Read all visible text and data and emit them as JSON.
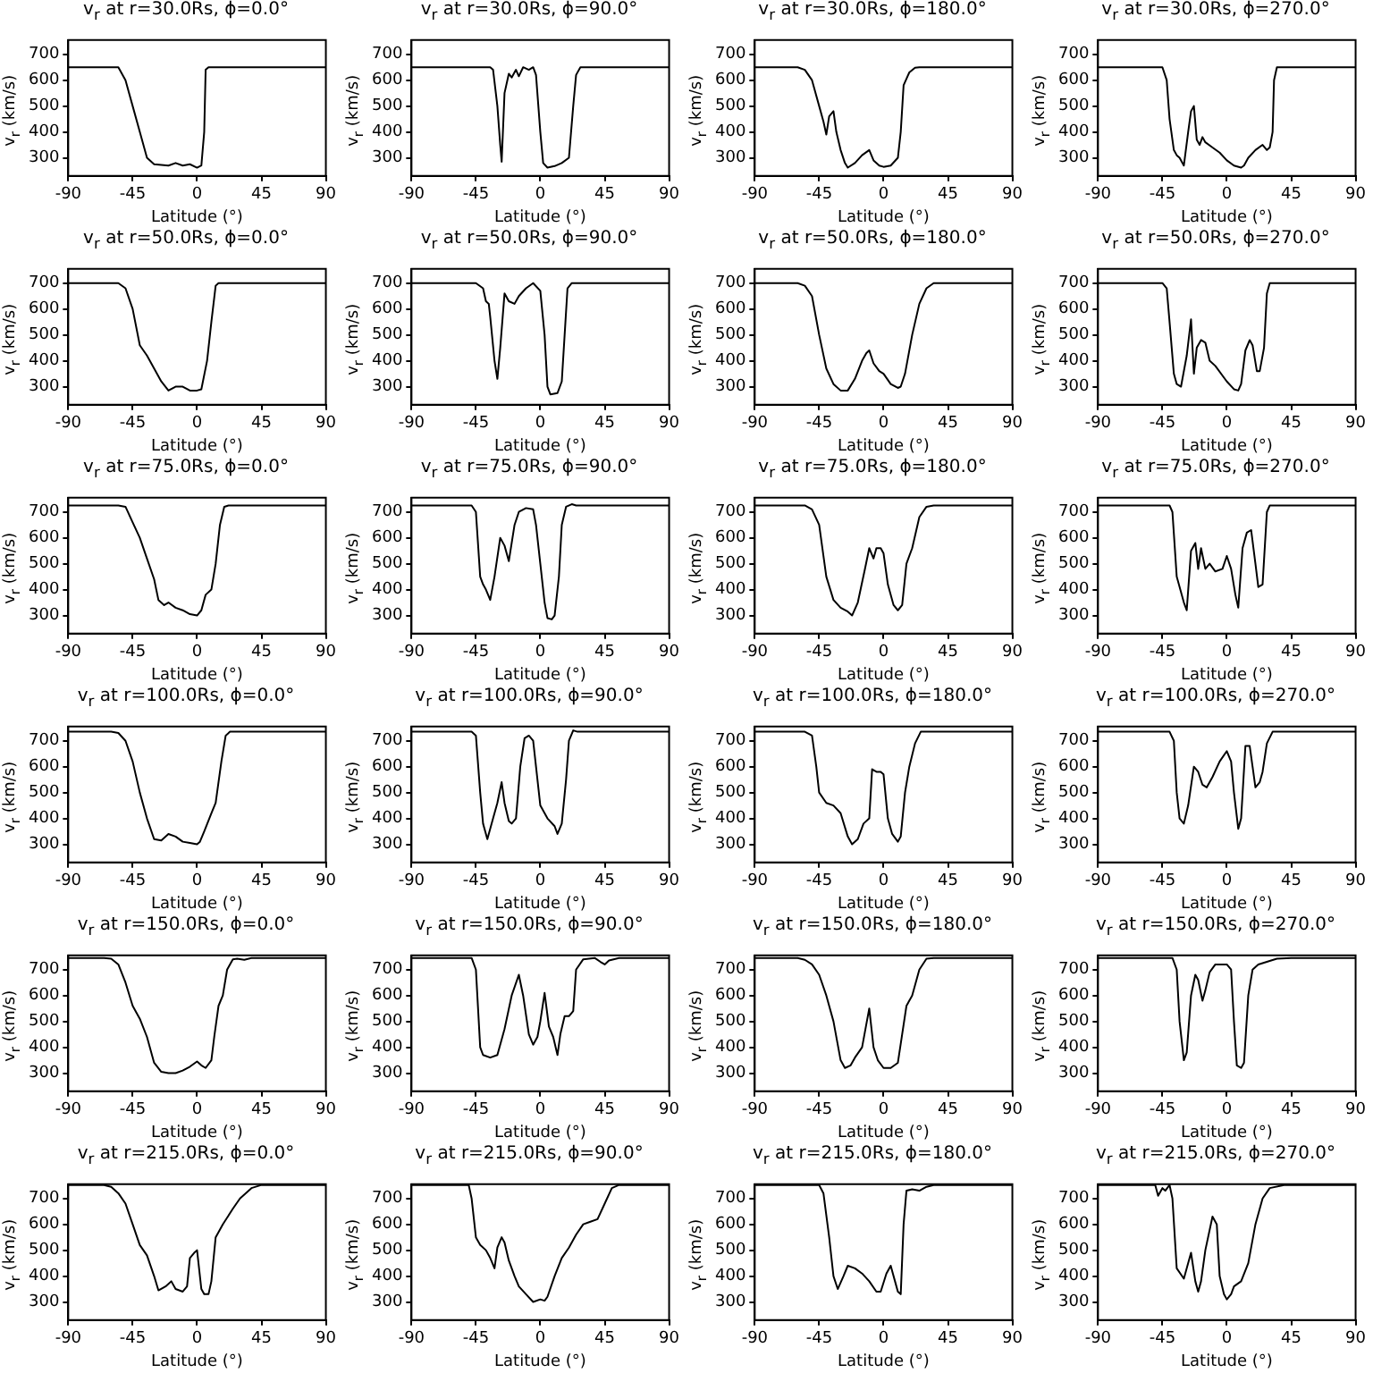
{
  "chart_data": [
    {
      "type": "line",
      "title": "v$_{r}$ at r=30.0Rs, ϕ=0.0°",
      "xlabel": "Latitude (°)",
      "ylabel": "v$_{r}$ (km/s)",
      "xlim": [
        -90,
        90
      ],
      "ylim": [
        230,
        755
      ],
      "xticks": [
        -90,
        -45,
        0,
        45,
        90
      ],
      "yticks": [
        300,
        400,
        500,
        600,
        700
      ],
      "color": "#000000",
      "x": [
        -90,
        -55,
        -50,
        -45,
        -40,
        -35,
        -30,
        -20,
        -15,
        -10,
        -5,
        0,
        3,
        5,
        6,
        8,
        90
      ],
      "values": [
        650,
        650,
        600,
        500,
        400,
        300,
        275,
        270,
        280,
        270,
        275,
        262,
        270,
        400,
        640,
        650,
        650
      ]
    },
    {
      "type": "line",
      "title": "v$_{r}$ at r=30.0Rs, ϕ=90.0°",
      "xlabel": "Latitude (°)",
      "ylabel": "v$_{r}$ (km/s)",
      "xlim": [
        -90,
        90
      ],
      "ylim": [
        230,
        755
      ],
      "xticks": [
        -90,
        -45,
        0,
        45,
        90
      ],
      "yticks": [
        300,
        400,
        500,
        600,
        700
      ],
      "color": "#000000",
      "x": [
        -90,
        -35,
        -33,
        -30,
        -28,
        -27,
        -25,
        -22,
        -20,
        -17,
        -15,
        -12,
        -8,
        -5,
        -3,
        0,
        2,
        5,
        10,
        15,
        20,
        23,
        25,
        28,
        90
      ],
      "values": [
        650,
        650,
        640,
        500,
        350,
        285,
        550,
        625,
        610,
        640,
        615,
        650,
        640,
        650,
        620,
        400,
        280,
        262,
        268,
        280,
        300,
        500,
        620,
        650,
        650
      ]
    },
    {
      "type": "line",
      "title": "v$_{r}$ at r=30.0Rs, ϕ=180.0°",
      "xlabel": "Latitude (°)",
      "ylabel": "v$_{r}$ (km/s)",
      "xlim": [
        -90,
        90
      ],
      "ylim": [
        230,
        755
      ],
      "xticks": [
        -90,
        -45,
        0,
        45,
        90
      ],
      "yticks": [
        300,
        400,
        500,
        600,
        700
      ],
      "color": "#000000",
      "x": [
        -90,
        -60,
        -55,
        -50,
        -45,
        -42,
        -40,
        -38,
        -35,
        -33,
        -30,
        -27,
        -25,
        -20,
        -15,
        -10,
        -7,
        -3,
        0,
        5,
        10,
        12,
        14,
        18,
        22,
        25,
        90
      ],
      "values": [
        650,
        650,
        640,
        600,
        500,
        440,
        390,
        460,
        480,
        400,
        330,
        280,
        262,
        280,
        310,
        330,
        290,
        270,
        265,
        270,
        300,
        400,
        580,
        630,
        648,
        650,
        650
      ]
    },
    {
      "type": "line",
      "title": "v$_{r}$ at r=30.0Rs, ϕ=270.0°",
      "xlabel": "Latitude (°)",
      "ylabel": "v$_{r}$ (km/s)",
      "xlim": [
        -90,
        90
      ],
      "ylim": [
        230,
        755
      ],
      "xticks": [
        -90,
        -45,
        0,
        45,
        90
      ],
      "yticks": [
        300,
        400,
        500,
        600,
        700
      ],
      "color": "#000000",
      "x": [
        -90,
        -45,
        -42,
        -40,
        -37,
        -35,
        -33,
        -30,
        -27,
        -25,
        -23,
        -21,
        -19,
        -17,
        -15,
        -10,
        -5,
        0,
        5,
        10,
        12,
        15,
        20,
        25,
        28,
        30,
        32,
        33,
        35,
        90
      ],
      "values": [
        650,
        650,
        600,
        450,
        330,
        310,
        300,
        270,
        400,
        480,
        500,
        370,
        350,
        380,
        360,
        340,
        320,
        290,
        270,
        262,
        270,
        300,
        330,
        350,
        330,
        340,
        400,
        600,
        650,
        650
      ]
    },
    {
      "type": "line",
      "title": "v$_{r}$ at r=50.0Rs, ϕ=0.0°",
      "xlabel": "Latitude (°)",
      "ylabel": "v$_{r}$ (km/s)",
      "xlim": [
        -90,
        90
      ],
      "ylim": [
        230,
        755
      ],
      "xticks": [
        -90,
        -45,
        0,
        45,
        90
      ],
      "yticks": [
        300,
        400,
        500,
        600,
        700
      ],
      "color": "#000000",
      "x": [
        -90,
        -55,
        -50,
        -45,
        -40,
        -35,
        -30,
        -25,
        -20,
        -15,
        -10,
        -5,
        0,
        3,
        7,
        10,
        13,
        15,
        90
      ],
      "values": [
        700,
        700,
        680,
        600,
        460,
        420,
        370,
        320,
        285,
        300,
        300,
        285,
        285,
        290,
        400,
        550,
        690,
        700,
        700
      ]
    },
    {
      "type": "line",
      "title": "v$_{r}$ at r=50.0Rs, ϕ=90.0°",
      "xlabel": "Latitude (°)",
      "ylabel": "v$_{r}$ (km/s)",
      "xlim": [
        -90,
        90
      ],
      "ylim": [
        230,
        755
      ],
      "xticks": [
        -90,
        -45,
        0,
        45,
        90
      ],
      "yticks": [
        300,
        400,
        500,
        600,
        700
      ],
      "color": "#000000",
      "x": [
        -90,
        -45,
        -40,
        -38,
        -36,
        -35,
        -32,
        -30,
        -28,
        -25,
        -22,
        -18,
        -15,
        -10,
        -5,
        0,
        3,
        5,
        7,
        12,
        15,
        17,
        19,
        22,
        90
      ],
      "values": [
        700,
        700,
        680,
        630,
        620,
        570,
        400,
        330,
        450,
        660,
        630,
        620,
        650,
        680,
        700,
        670,
        500,
        300,
        270,
        275,
        320,
        500,
        680,
        700,
        700
      ]
    },
    {
      "type": "line",
      "title": "v$_{r}$ at r=50.0Rs, ϕ=180.0°",
      "xlabel": "Latitude (°)",
      "ylabel": "v$_{r}$ (km/s)",
      "xlim": [
        -90,
        90
      ],
      "ylim": [
        230,
        755
      ],
      "xticks": [
        -90,
        -45,
        0,
        45,
        90
      ],
      "yticks": [
        300,
        400,
        500,
        600,
        700
      ],
      "color": "#000000",
      "x": [
        -90,
        -60,
        -55,
        -50,
        -45,
        -40,
        -35,
        -30,
        -25,
        -20,
        -15,
        -12,
        -10,
        -7,
        -3,
        0,
        5,
        10,
        12,
        15,
        20,
        25,
        30,
        35,
        90
      ],
      "values": [
        700,
        700,
        690,
        650,
        500,
        370,
        310,
        285,
        285,
        330,
        400,
        430,
        440,
        390,
        360,
        350,
        310,
        295,
        300,
        350,
        500,
        620,
        680,
        700,
        700
      ]
    },
    {
      "type": "line",
      "title": "v$_{r}$ at r=50.0Rs, ϕ=270.0°",
      "xlabel": "Latitude (°)",
      "ylabel": "v$_{r}$ (km/s)",
      "xlim": [
        -90,
        90
      ],
      "ylim": [
        230,
        755
      ],
      "xticks": [
        -90,
        -45,
        0,
        45,
        90
      ],
      "yticks": [
        300,
        400,
        500,
        600,
        700
      ],
      "color": "#000000",
      "x": [
        -90,
        -45,
        -42,
        -40,
        -37,
        -35,
        -32,
        -28,
        -25,
        -23,
        -21,
        -18,
        -15,
        -12,
        -8,
        0,
        5,
        8,
        10,
        13,
        16,
        18,
        21,
        23,
        26,
        28,
        30,
        90
      ],
      "values": [
        700,
        700,
        680,
        550,
        350,
        310,
        300,
        420,
        560,
        350,
        450,
        480,
        470,
        400,
        380,
        320,
        290,
        285,
        310,
        440,
        480,
        460,
        360,
        360,
        450,
        660,
        700,
        700
      ]
    },
    {
      "type": "line",
      "title": "v$_{r}$ at r=75.0Rs, ϕ=0.0°",
      "xlabel": "Latitude (°)",
      "ylabel": "v$_{r}$ (km/s)",
      "xlim": [
        -90,
        90
      ],
      "ylim": [
        230,
        755
      ],
      "xticks": [
        -90,
        -45,
        0,
        45,
        90
      ],
      "yticks": [
        300,
        400,
        500,
        600,
        700
      ],
      "color": "#000000",
      "x": [
        -90,
        -55,
        -50,
        -45,
        -40,
        -35,
        -30,
        -27,
        -23,
        -20,
        -15,
        -10,
        -5,
        0,
        3,
        6,
        10,
        13,
        16,
        19,
        22,
        90
      ],
      "values": [
        725,
        725,
        720,
        660,
        600,
        520,
        440,
        360,
        340,
        350,
        330,
        320,
        305,
        300,
        320,
        380,
        400,
        500,
        650,
        720,
        725,
        725
      ]
    },
    {
      "type": "line",
      "title": "v$_{r}$ at r=75.0Rs, ϕ=90.0°",
      "xlabel": "Latitude (°)",
      "ylabel": "v$_{r}$ (km/s)",
      "xlim": [
        -90,
        90
      ],
      "ylim": [
        230,
        755
      ],
      "xticks": [
        -90,
        -45,
        0,
        45,
        90
      ],
      "yticks": [
        300,
        400,
        500,
        600,
        700
      ],
      "color": "#000000",
      "x": [
        -90,
        -48,
        -45,
        -42,
        -40,
        -38,
        -35,
        -32,
        -28,
        -25,
        -22,
        -18,
        -15,
        -10,
        -5,
        -3,
        0,
        3,
        5,
        8,
        10,
        13,
        15,
        18,
        22,
        25,
        90
      ],
      "values": [
        725,
        725,
        700,
        450,
        420,
        400,
        360,
        450,
        600,
        570,
        510,
        650,
        700,
        715,
        710,
        650,
        500,
        350,
        290,
        285,
        300,
        450,
        650,
        720,
        730,
        725,
        725
      ]
    },
    {
      "type": "line",
      "title": "v$_{r}$ at r=75.0Rs, ϕ=180.0°",
      "xlabel": "Latitude (°)",
      "ylabel": "v$_{r}$ (km/s)",
      "xlim": [
        -90,
        90
      ],
      "ylim": [
        230,
        755
      ],
      "xticks": [
        -90,
        -45,
        0,
        45,
        90
      ],
      "yticks": [
        300,
        400,
        500,
        600,
        700
      ],
      "color": "#000000",
      "x": [
        -90,
        -55,
        -50,
        -45,
        -40,
        -35,
        -30,
        -25,
        -22,
        -18,
        -13,
        -10,
        -7,
        -5,
        -2,
        0,
        3,
        7,
        10,
        13,
        16,
        20,
        25,
        30,
        35,
        90
      ],
      "values": [
        725,
        725,
        710,
        650,
        450,
        360,
        330,
        315,
        300,
        350,
        480,
        560,
        520,
        560,
        560,
        540,
        420,
        340,
        320,
        340,
        500,
        560,
        680,
        720,
        725,
        725
      ]
    },
    {
      "type": "line",
      "title": "v$_{r}$ at r=75.0Rs, ϕ=270.0°",
      "xlabel": "Latitude (°)",
      "ylabel": "v$_{r}$ (km/s)",
      "xlim": [
        -90,
        90
      ],
      "ylim": [
        230,
        755
      ],
      "xticks": [
        -90,
        -45,
        0,
        45,
        90
      ],
      "yticks": [
        300,
        400,
        500,
        600,
        700
      ],
      "color": "#000000",
      "x": [
        -90,
        -40,
        -38,
        -35,
        -30,
        -28,
        -25,
        -22,
        -20,
        -18,
        -15,
        -12,
        -8,
        -3,
        0,
        3,
        6,
        8,
        11,
        14,
        17,
        20,
        22,
        25,
        28,
        30,
        90
      ],
      "values": [
        725,
        725,
        700,
        450,
        350,
        320,
        550,
        580,
        480,
        560,
        480,
        500,
        470,
        480,
        530,
        480,
        380,
        330,
        560,
        620,
        630,
        500,
        410,
        420,
        700,
        725,
        725
      ]
    },
    {
      "type": "line",
      "title": "v$_{r}$ at r=100.0Rs, ϕ=0.0°",
      "xlabel": "Latitude (°)",
      "ylabel": "v$_{r}$ (km/s)",
      "xlim": [
        -90,
        90
      ],
      "ylim": [
        230,
        755
      ],
      "xticks": [
        -90,
        -45,
        0,
        45,
        90
      ],
      "yticks": [
        300,
        400,
        500,
        600,
        700
      ],
      "color": "#000000",
      "x": [
        -90,
        -60,
        -55,
        -50,
        -45,
        -40,
        -35,
        -30,
        -25,
        -20,
        -15,
        -10,
        -5,
        0,
        2,
        5,
        10,
        13,
        17,
        20,
        23,
        90
      ],
      "values": [
        735,
        735,
        730,
        700,
        620,
        500,
        400,
        320,
        315,
        340,
        330,
        310,
        305,
        300,
        310,
        350,
        420,
        460,
        620,
        720,
        735,
        735
      ]
    },
    {
      "type": "line",
      "title": "v$_{r}$ at r=100.0Rs, ϕ=90.0°",
      "xlabel": "Latitude (°)",
      "ylabel": "v$_{r}$ (km/s)",
      "xlim": [
        -90,
        90
      ],
      "ylim": [
        230,
        755
      ],
      "xticks": [
        -90,
        -45,
        0,
        45,
        90
      ],
      "yticks": [
        300,
        400,
        500,
        600,
        700
      ],
      "color": "#000000",
      "x": [
        -90,
        -48,
        -45,
        -42,
        -40,
        -37,
        -33,
        -30,
        -27,
        -25,
        -22,
        -20,
        -17,
        -14,
        -11,
        -8,
        -5,
        -3,
        0,
        5,
        10,
        12,
        15,
        18,
        20,
        23,
        26,
        90
      ],
      "values": [
        735,
        735,
        720,
        500,
        380,
        320,
        400,
        460,
        540,
        460,
        390,
        380,
        400,
        600,
        710,
        720,
        700,
        600,
        450,
        400,
        370,
        340,
        380,
        550,
        700,
        740,
        735,
        735
      ]
    },
    {
      "type": "line",
      "title": "v$_{r}$ at r=100.0Rs, ϕ=180.0°",
      "xlabel": "Latitude (°)",
      "ylabel": "v$_{r}$ (km/s)",
      "xlim": [
        -90,
        90
      ],
      "ylim": [
        230,
        755
      ],
      "xticks": [
        -90,
        -45,
        0,
        45,
        90
      ],
      "yticks": [
        300,
        400,
        500,
        600,
        700
      ],
      "color": "#000000",
      "x": [
        -90,
        -55,
        -50,
        -47,
        -45,
        -40,
        -35,
        -30,
        -25,
        -22,
        -18,
        -14,
        -10,
        -8,
        -5,
        -2,
        0,
        3,
        6,
        10,
        12,
        15,
        18,
        22,
        26,
        90
      ],
      "values": [
        735,
        735,
        720,
        600,
        500,
        460,
        450,
        420,
        330,
        300,
        320,
        380,
        400,
        590,
        580,
        580,
        570,
        400,
        340,
        310,
        330,
        500,
        600,
        690,
        735,
        735
      ]
    },
    {
      "type": "line",
      "title": "v$_{r}$ at r=100.0Rs, ϕ=270.0°",
      "xlabel": "Latitude (°)",
      "ylabel": "v$_{r}$ (km/s)",
      "xlim": [
        -90,
        90
      ],
      "ylim": [
        230,
        755
      ],
      "xticks": [
        -90,
        -45,
        0,
        45,
        90
      ],
      "yticks": [
        300,
        400,
        500,
        600,
        700
      ],
      "color": "#000000",
      "x": [
        -90,
        -40,
        -37,
        -35,
        -33,
        -30,
        -27,
        -23,
        -20,
        -17,
        -14,
        -10,
        -5,
        0,
        3,
        5,
        8,
        10,
        13,
        16,
        18,
        20,
        23,
        25,
        28,
        32,
        90
      ],
      "values": [
        735,
        735,
        700,
        500,
        400,
        380,
        450,
        600,
        580,
        530,
        520,
        560,
        620,
        660,
        620,
        500,
        360,
        400,
        680,
        680,
        600,
        520,
        540,
        580,
        690,
        735,
        735
      ]
    },
    {
      "type": "line",
      "title": "v$_{r}$ at r=150.0Rs, ϕ=0.0°",
      "xlabel": "Latitude (°)",
      "ylabel": "v$_{r}$ (km/s)",
      "xlim": [
        -90,
        90
      ],
      "ylim": [
        230,
        755
      ],
      "xticks": [
        -90,
        -45,
        0,
        45,
        90
      ],
      "yticks": [
        300,
        400,
        500,
        600,
        700
      ],
      "color": "#000000",
      "x": [
        -90,
        -65,
        -60,
        -55,
        -50,
        -45,
        -40,
        -35,
        -30,
        -25,
        -20,
        -15,
        -10,
        -5,
        0,
        3,
        6,
        10,
        12,
        15,
        18,
        21,
        25,
        28,
        33,
        38,
        90
      ],
      "values": [
        745,
        745,
        742,
        720,
        650,
        560,
        510,
        440,
        340,
        305,
        300,
        300,
        310,
        325,
        345,
        330,
        320,
        350,
        440,
        560,
        600,
        700,
        740,
        742,
        738,
        745,
        745
      ]
    },
    {
      "type": "line",
      "title": "v$_{r}$ at r=150.0Rs, ϕ=90.0°",
      "xlabel": "Latitude (°)",
      "ylabel": "v$_{r}$ (km/s)",
      "xlim": [
        -90,
        90
      ],
      "ylim": [
        230,
        755
      ],
      "xticks": [
        -90,
        -45,
        0,
        45,
        90
      ],
      "yticks": [
        300,
        400,
        500,
        600,
        700
      ],
      "color": "#000000",
      "x": [
        -90,
        -48,
        -45,
        -42,
        -40,
        -35,
        -30,
        -25,
        -20,
        -15,
        -12,
        -8,
        -5,
        -2,
        0,
        3,
        6,
        9,
        12,
        14,
        17,
        20,
        23,
        25,
        30,
        38,
        42,
        45,
        48,
        55,
        90
      ],
      "values": [
        745,
        745,
        700,
        400,
        370,
        360,
        370,
        470,
        600,
        680,
        600,
        450,
        410,
        440,
        500,
        610,
        480,
        440,
        370,
        450,
        520,
        520,
        540,
        700,
        740,
        745,
        730,
        720,
        735,
        745,
        745
      ]
    },
    {
      "type": "line",
      "title": "v$_{r}$ at r=150.0Rs, ϕ=180.0°",
      "xlabel": "Latitude (°)",
      "ylabel": "v$_{r}$ (km/s)",
      "xlim": [
        -90,
        90
      ],
      "ylim": [
        230,
        755
      ],
      "xticks": [
        -90,
        -45,
        0,
        45,
        90
      ],
      "yticks": [
        300,
        400,
        500,
        600,
        700
      ],
      "color": "#000000",
      "x": [
        -90,
        -60,
        -55,
        -50,
        -45,
        -40,
        -35,
        -30,
        -27,
        -23,
        -20,
        -15,
        -10,
        -7,
        -4,
        0,
        5,
        10,
        13,
        16,
        20,
        25,
        30,
        35,
        90
      ],
      "values": [
        745,
        745,
        738,
        720,
        680,
        600,
        500,
        350,
        320,
        330,
        360,
        400,
        550,
        400,
        350,
        320,
        320,
        340,
        450,
        560,
        600,
        700,
        742,
        745,
        745
      ]
    },
    {
      "type": "line",
      "title": "v$_{r}$ at r=150.0Rs, ϕ=270.0°",
      "xlabel": "Latitude (°)",
      "ylabel": "v$_{r}$ (km/s)",
      "xlim": [
        -90,
        90
      ],
      "ylim": [
        230,
        755
      ],
      "xticks": [
        -90,
        -45,
        0,
        45,
        90
      ],
      "yticks": [
        300,
        400,
        500,
        600,
        700
      ],
      "color": "#000000",
      "x": [
        -90,
        -38,
        -35,
        -33,
        -30,
        -28,
        -25,
        -22,
        -20,
        -17,
        -15,
        -12,
        -8,
        0,
        3,
        5,
        7,
        10,
        12,
        15,
        18,
        22,
        28,
        35,
        45,
        90
      ],
      "values": [
        745,
        745,
        700,
        500,
        350,
        380,
        600,
        680,
        660,
        580,
        620,
        690,
        720,
        720,
        700,
        500,
        330,
        320,
        340,
        600,
        700,
        720,
        730,
        742,
        745,
        745
      ]
    },
    {
      "type": "line",
      "title": "v$_{r}$ at r=215.0Rs, ϕ=0.0°",
      "xlabel": "Latitude (°)",
      "ylabel": "v$_{r}$ (km/s)",
      "xlim": [
        -90,
        90
      ],
      "ylim": [
        230,
        755
      ],
      "xticks": [
        -90,
        -45,
        0,
        45,
        90
      ],
      "yticks": [
        300,
        400,
        500,
        600,
        700
      ],
      "color": "#000000",
      "x": [
        -90,
        -65,
        -60,
        -55,
        -50,
        -45,
        -40,
        -35,
        -30,
        -27,
        -22,
        -18,
        -15,
        -10,
        -7,
        -5,
        -2,
        0,
        3,
        5,
        8,
        10,
        13,
        18,
        25,
        30,
        38,
        45,
        90
      ],
      "values": [
        752,
        752,
        745,
        720,
        680,
        600,
        520,
        480,
        400,
        345,
        360,
        380,
        350,
        340,
        360,
        470,
        490,
        500,
        350,
        330,
        330,
        380,
        550,
        600,
        660,
        700,
        740,
        752,
        752
      ]
    },
    {
      "type": "line",
      "title": "v$_{r}$ at r=215.0Rs, ϕ=90.0°",
      "xlabel": "Latitude (°)",
      "ylabel": "v$_{r}$ (km/s)",
      "xlim": [
        -90,
        90
      ],
      "ylim": [
        230,
        755
      ],
      "xticks": [
        -90,
        -45,
        0,
        45,
        90
      ],
      "yticks": [
        300,
        400,
        500,
        600,
        700
      ],
      "color": "#000000",
      "x": [
        -90,
        -50,
        -48,
        -45,
        -42,
        -38,
        -35,
        -32,
        -30,
        -27,
        -25,
        -22,
        -18,
        -15,
        -10,
        -5,
        0,
        3,
        5,
        10,
        15,
        20,
        25,
        30,
        35,
        40,
        45,
        50,
        55,
        90
      ],
      "values": [
        752,
        752,
        700,
        550,
        520,
        500,
        470,
        430,
        510,
        550,
        530,
        460,
        400,
        360,
        330,
        300,
        310,
        305,
        320,
        400,
        470,
        510,
        560,
        600,
        610,
        620,
        680,
        740,
        752,
        752
      ]
    },
    {
      "type": "line",
      "title": "v$_{r}$ at r=215.0Rs, ϕ=180.0°",
      "xlabel": "Latitude (°)",
      "ylabel": "v$_{r}$ (km/s)",
      "xlim": [
        -90,
        90
      ],
      "ylim": [
        230,
        755
      ],
      "xticks": [
        -90,
        -45,
        0,
        45,
        90
      ],
      "yticks": [
        300,
        400,
        500,
        600,
        700
      ],
      "color": "#000000",
      "x": [
        -90,
        -45,
        -42,
        -38,
        -35,
        -32,
        -28,
        -25,
        -20,
        -15,
        -10,
        -5,
        -2,
        2,
        5,
        8,
        10,
        12,
        14,
        16,
        20,
        25,
        30,
        35,
        90
      ],
      "values": [
        752,
        752,
        720,
        550,
        400,
        350,
        400,
        440,
        430,
        410,
        380,
        340,
        340,
        410,
        440,
        380,
        340,
        330,
        600,
        730,
        735,
        730,
        745,
        752,
        752
      ]
    },
    {
      "type": "line",
      "title": "v$_{r}$ at r=215.0Rs, ϕ=270.0°",
      "xlabel": "Latitude (°)",
      "ylabel": "v$_{r}$ (km/s)",
      "xlim": [
        -90,
        90
      ],
      "ylim": [
        230,
        755
      ],
      "xticks": [
        -90,
        -45,
        0,
        45,
        90
      ],
      "yticks": [
        300,
        400,
        500,
        600,
        700
      ],
      "color": "#000000",
      "x": [
        -90,
        -50,
        -48,
        -45,
        -43,
        -40,
        -38,
        -35,
        -30,
        -27,
        -25,
        -22,
        -20,
        -18,
        -15,
        -10,
        -7,
        -5,
        -2,
        0,
        3,
        5,
        10,
        15,
        20,
        25,
        30,
        40,
        90
      ],
      "values": [
        752,
        752,
        710,
        740,
        730,
        752,
        700,
        430,
        390,
        450,
        490,
        380,
        340,
        380,
        500,
        630,
        600,
        400,
        330,
        310,
        330,
        360,
        380,
        450,
        600,
        700,
        740,
        752,
        752
      ]
    }
  ]
}
